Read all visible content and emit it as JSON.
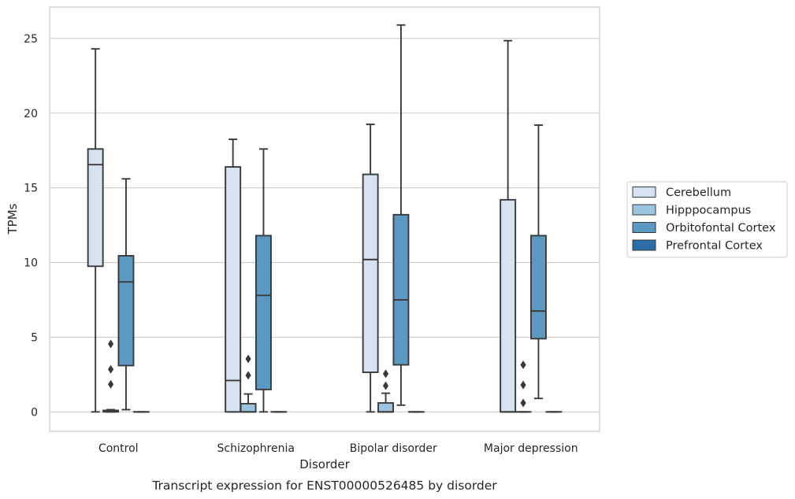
{
  "chart_data": {
    "type": "box",
    "title": "",
    "caption": "Transcript expression for ENST00000526485 by disorder",
    "xlabel": "Disorder",
    "ylabel": "TPMs",
    "categories": [
      "Control",
      "Schizophrenia",
      "Bipolar disorder",
      "Major depression"
    ],
    "ylim": [
      -1.3,
      27.1
    ],
    "yticks": [
      0,
      5,
      10,
      15,
      20,
      25
    ],
    "grid": "horizontal",
    "legend_position": "right",
    "series": [
      {
        "name": "Cerebellum",
        "color": "#d5e3f0",
        "boxes": [
          {
            "whisker_low": 0,
            "q1": 9.75,
            "median": 16.55,
            "q3": 17.6,
            "whisker_high": 24.3,
            "outliers": []
          },
          {
            "whisker_low": 0,
            "q1": 0,
            "median": 2.1,
            "q3": 16.4,
            "whisker_high": 18.25,
            "outliers": []
          },
          {
            "whisker_low": 0,
            "q1": 2.65,
            "median": 10.2,
            "q3": 15.9,
            "whisker_high": 19.25,
            "outliers": []
          },
          {
            "whisker_low": 0,
            "q1": 0,
            "median": 0,
            "q3": 14.2,
            "whisker_high": 24.85,
            "outliers": []
          }
        ]
      },
      {
        "name": "Hipppocampus",
        "color": "#9ac4e0",
        "boxes": [
          {
            "whisker_low": 0,
            "q1": 0,
            "median": 0.05,
            "q3": 0.1,
            "whisker_high": 0.15,
            "outliers": [
              4.55,
              2.85,
              1.85
            ]
          },
          {
            "whisker_low": 0,
            "q1": 0,
            "median": 0,
            "q3": 0.55,
            "whisker_high": 1.2,
            "outliers": [
              3.55,
              2.45
            ]
          },
          {
            "whisker_low": 0,
            "q1": 0,
            "median": 0,
            "q3": 0.6,
            "whisker_high": 1.25,
            "outliers": [
              2.55,
              1.75
            ]
          },
          {
            "whisker_low": 0,
            "q1": 0,
            "median": 0,
            "q3": 0,
            "whisker_high": 0,
            "outliers": [
              3.15,
              1.8,
              0.6
            ]
          }
        ]
      },
      {
        "name": "Orbitofontal Cortex",
        "color": "#5b98c2",
        "boxes": [
          {
            "whisker_low": 0.15,
            "q1": 3.1,
            "median": 8.7,
            "q3": 10.45,
            "whisker_high": 15.6,
            "outliers": []
          },
          {
            "whisker_low": 0,
            "q1": 1.5,
            "median": 7.8,
            "q3": 11.8,
            "whisker_high": 17.6,
            "outliers": []
          },
          {
            "whisker_low": 0.45,
            "q1": 3.15,
            "median": 7.5,
            "q3": 13.2,
            "whisker_high": 25.9,
            "outliers": []
          },
          {
            "whisker_low": 0.9,
            "q1": 4.9,
            "median": 6.75,
            "q3": 11.8,
            "whisker_high": 19.2,
            "outliers": []
          }
        ]
      },
      {
        "name": "Prefrontal Cortex",
        "color": "#2c6ca7",
        "boxes": [
          {
            "whisker_low": 0,
            "q1": 0,
            "median": 0,
            "q3": 0,
            "whisker_high": 0,
            "outliers": []
          },
          {
            "whisker_low": 0,
            "q1": 0,
            "median": 0,
            "q3": 0,
            "whisker_high": 0,
            "outliers": []
          },
          {
            "whisker_low": 0,
            "q1": 0,
            "median": 0,
            "q3": 0,
            "whisker_high": 0,
            "outliers": []
          },
          {
            "whisker_low": 0,
            "q1": 0,
            "median": 0,
            "q3": 0,
            "whisker_high": 0,
            "outliers": []
          }
        ]
      }
    ]
  }
}
